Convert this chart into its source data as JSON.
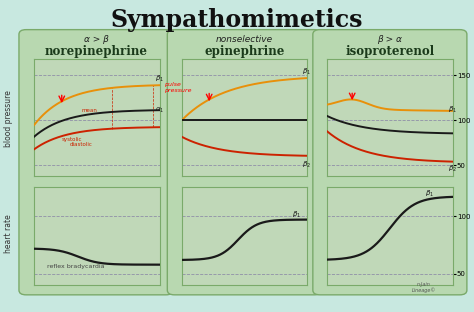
{
  "title": "Sympathomimetics",
  "bg_color": "#c8e8e0",
  "panel_outer_bg": "#b8d8b0",
  "panel_inner_bg": "#c0d8b8",
  "border_color": "#7aaa6a",
  "drugs": [
    "norepinephrine",
    "epinephrine",
    "isoproterenol"
  ],
  "subtitles": [
    "α > β",
    "nonselective",
    "β > α"
  ],
  "bp_ylabel": "blood pressure",
  "hr_ylabel": "heart rate",
  "hr_annotation_nor": "reflex bradycardia",
  "orange_color": "#e8900a",
  "red_color": "#cc2200",
  "black_color": "#1a1a1a",
  "dashed_color": "#9090a8",
  "bp_yticks": [
    50,
    100,
    150
  ],
  "hr_yticks": [
    50,
    100
  ],
  "ylim_bp": [
    38,
    168
  ],
  "ylim_hr": [
    40,
    125
  ]
}
